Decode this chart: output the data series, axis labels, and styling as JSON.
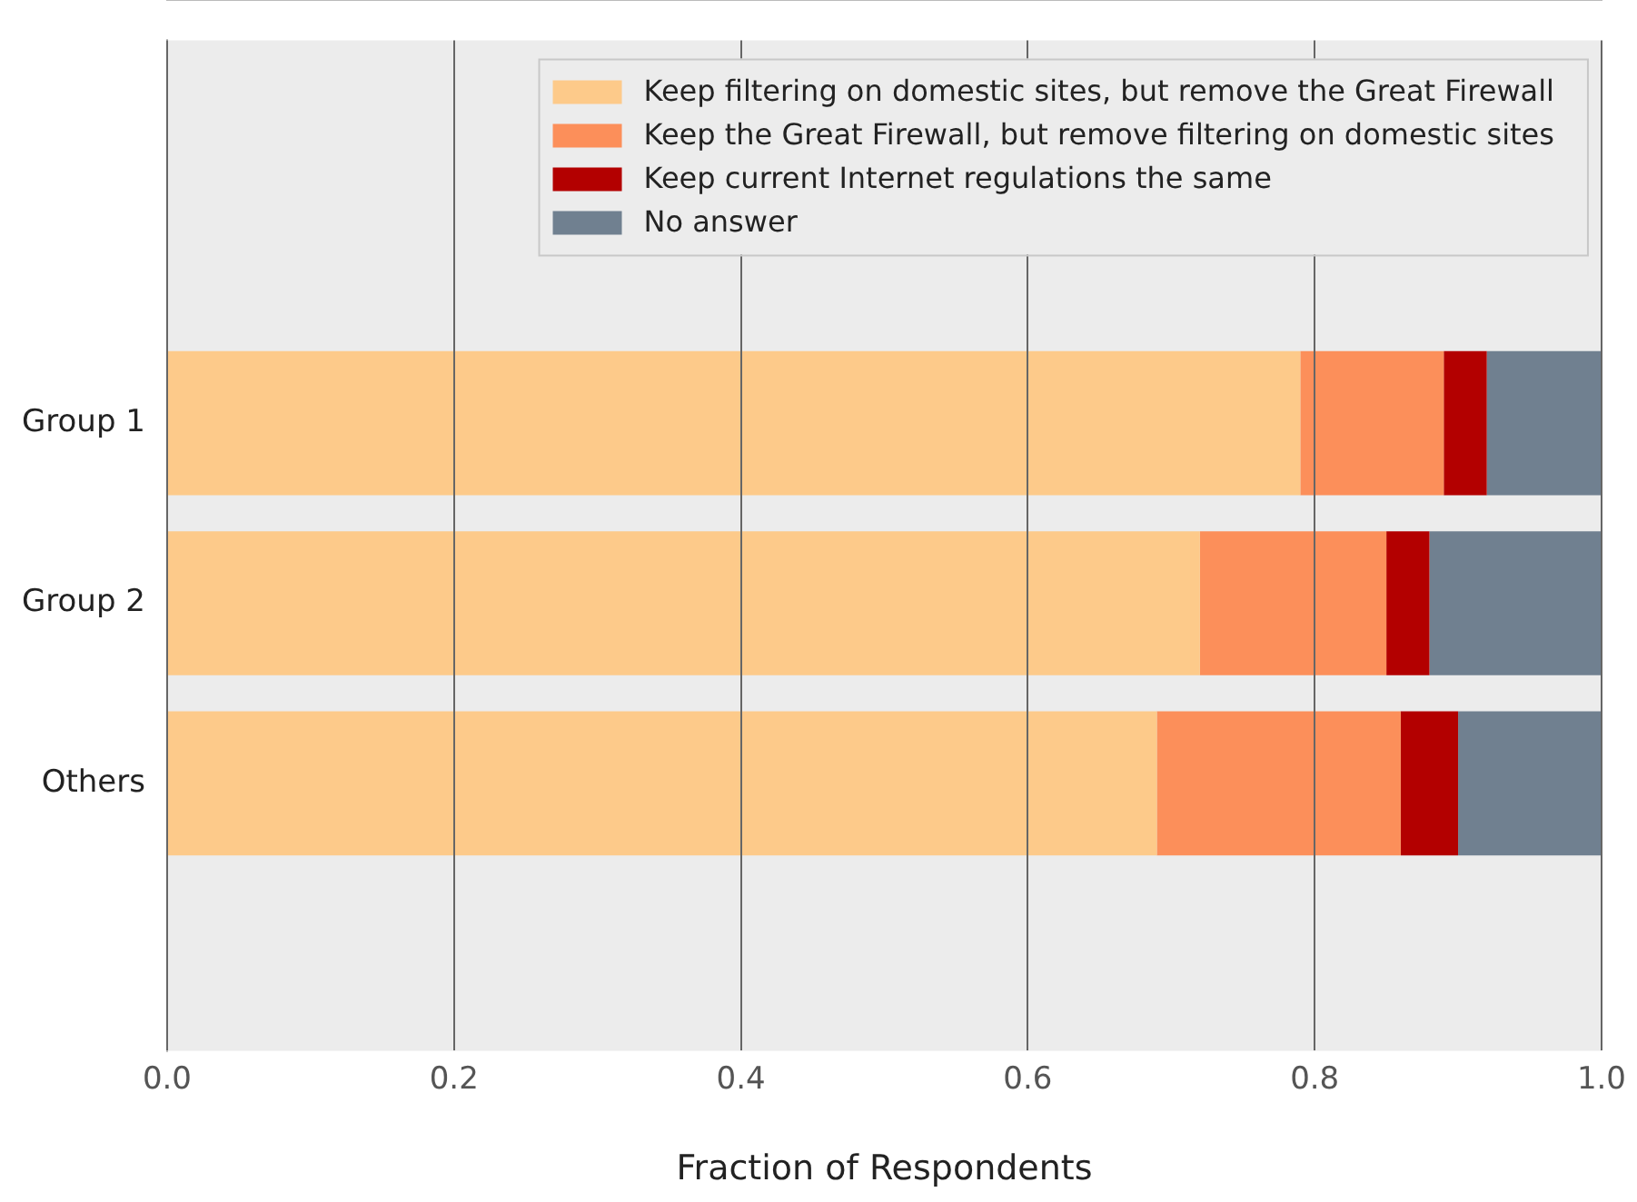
{
  "chart_data": {
    "type": "bar",
    "orientation": "horizontal",
    "stacked": true,
    "xlabel": "Fraction of Respondents",
    "categories": [
      "Group 1",
      "Group 2",
      "Others"
    ],
    "series": [
      {
        "name": "Keep filtering on domestic sites, but remove the Great Firewall",
        "color": "#fdca8a",
        "values": [
          0.79,
          0.72,
          0.69
        ]
      },
      {
        "name": "Keep the Great Firewall, but remove filtering on domestic sites",
        "color": "#fc8f5a",
        "values": [
          0.1,
          0.13,
          0.17
        ]
      },
      {
        "name": "Keep current Internet regulations the same",
        "color": "#b30000",
        "values": [
          0.03,
          0.03,
          0.04
        ]
      },
      {
        "name": "No answer",
        "color": "#708090",
        "values": [
          0.08,
          0.12,
          0.1
        ]
      }
    ],
    "xlim": [
      0,
      1
    ],
    "xticks": [
      {
        "value": 0,
        "label": "0.0"
      },
      {
        "value": 0.2,
        "label": "0.2"
      },
      {
        "value": 0.4,
        "label": "0.4"
      },
      {
        "value": 0.6,
        "label": "0.6"
      },
      {
        "value": 0.8,
        "label": "0.8"
      },
      {
        "value": 1,
        "label": "1.0"
      }
    ],
    "grid": "x",
    "legend": "top right"
  }
}
